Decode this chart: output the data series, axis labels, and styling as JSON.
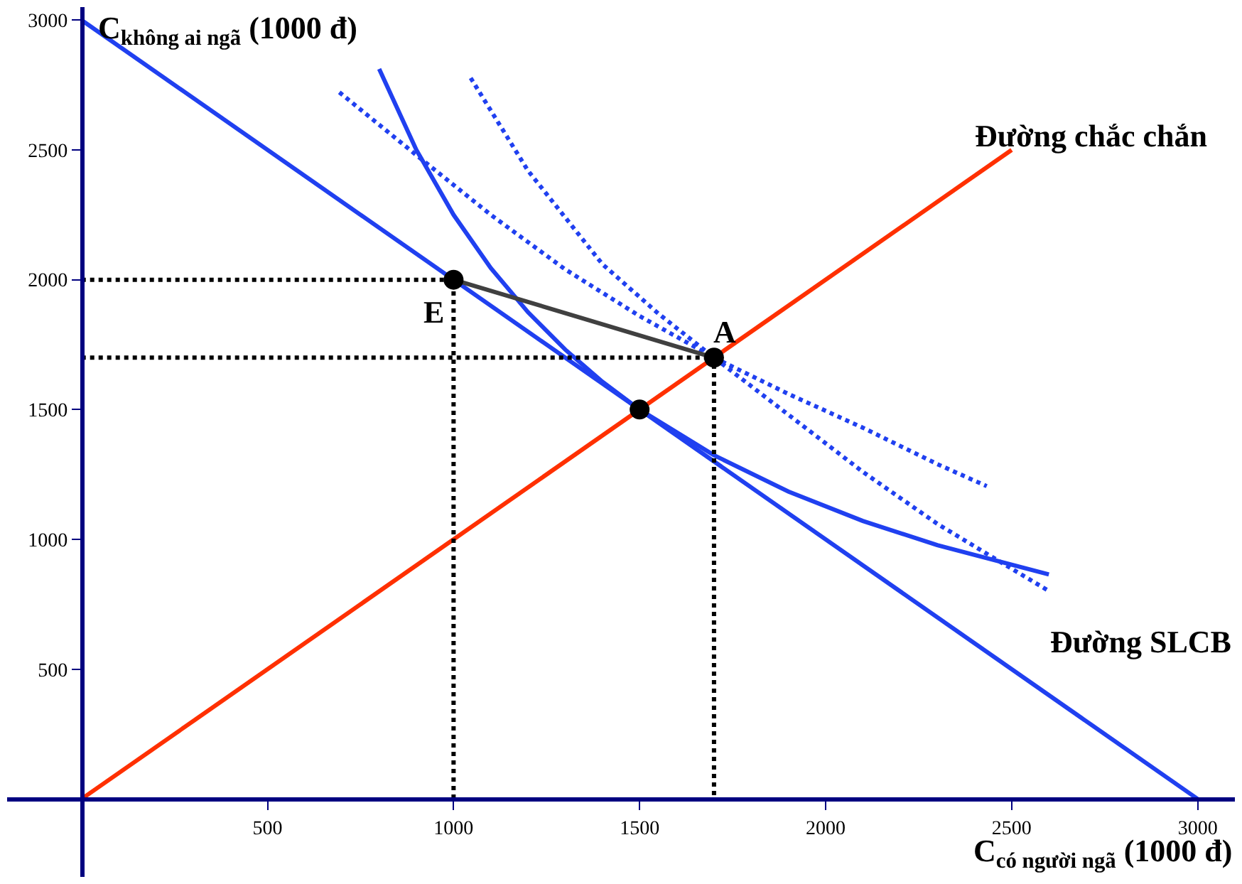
{
  "chart_data": {
    "type": "line",
    "xlabel": "C$_{có người ngã}$ (1000 đ)",
    "ylabel": "C$_{không ai ngã}$ (1000 đ)",
    "xlim": [
      -200,
      3100
    ],
    "ylim": [
      -300,
      3050
    ],
    "xticks": [
      500,
      1000,
      1500,
      2000,
      2500,
      3000
    ],
    "yticks": [
      500,
      1000,
      1500,
      2000,
      2500,
      3000
    ],
    "grid": false,
    "marker": "none",
    "series": [
      {
        "color": "#2040f0",
        "line_style": "solid",
        "x": [
          0,
          3000
        ],
        "values": [
          3000,
          0
        ]
      },
      {
        "color": "#ff3000",
        "line_style": "solid",
        "x": [
          0,
          2500
        ],
        "values": [
          0,
          2500
        ]
      },
      {
        "color": "#2040f0",
        "line_style": "solid",
        "x": [
          800,
          900,
          1000,
          1100,
          1200,
          1300,
          1400,
          1500,
          1700,
          1900,
          2100,
          2300,
          2600
        ],
        "values": [
          2812,
          2500,
          2250,
          2045,
          1875,
          1731,
          1607,
          1500,
          1324,
          1184,
          1071,
          978,
          865
        ]
      },
      {
        "color": "#2040f0",
        "line_style": "dotted",
        "x": [
          1046,
          1200,
          1400,
          1550,
          1700,
          1900,
          2100,
          2300,
          2450,
          2598
        ],
        "values": [
          2777,
          2420,
          2060,
          1870,
          1700,
          1480,
          1260,
          1060,
          930,
          803
        ]
      },
      {
        "color": "#2040f0",
        "line_style": "dotted",
        "x": [
          693,
          900,
          1100,
          1300,
          1500,
          1700,
          1900,
          2100,
          2300,
          2433
        ],
        "values": [
          2722,
          2480,
          2250,
          2040,
          1860,
          1700,
          1560,
          1430,
          1290,
          1205
        ]
      },
      {
        "color": "#000000",
        "line_style": "dotted",
        "x": [
          0,
          1000,
          1000
        ],
        "values": [
          2000,
          2000,
          0
        ]
      },
      {
        "color": "#000000",
        "line_style": "dotted",
        "x": [
          0,
          1700,
          1700
        ],
        "values": [
          1700,
          1700,
          0
        ]
      },
      {
        "color": "#404040",
        "line_style": "solid",
        "x": [
          1000,
          1700
        ],
        "values": [
          2000,
          1700
        ]
      },
      {
        "type": "scatter",
        "color": "#000000",
        "marker": "circle",
        "x": [
          1000,
          1500,
          1700
        ],
        "values": [
          2000,
          1500,
          1700
        ]
      }
    ],
    "annotations": [
      {
        "text": "Đường chắc chắn",
        "x": 2500,
        "y": 2500
      },
      "Đường SLCB",
      {
        "text": "E",
        "x": 1000,
        "y": 2000
      },
      {
        "text": "A",
        "x": 1700,
        "y": 1700
      }
    ]
  }
}
